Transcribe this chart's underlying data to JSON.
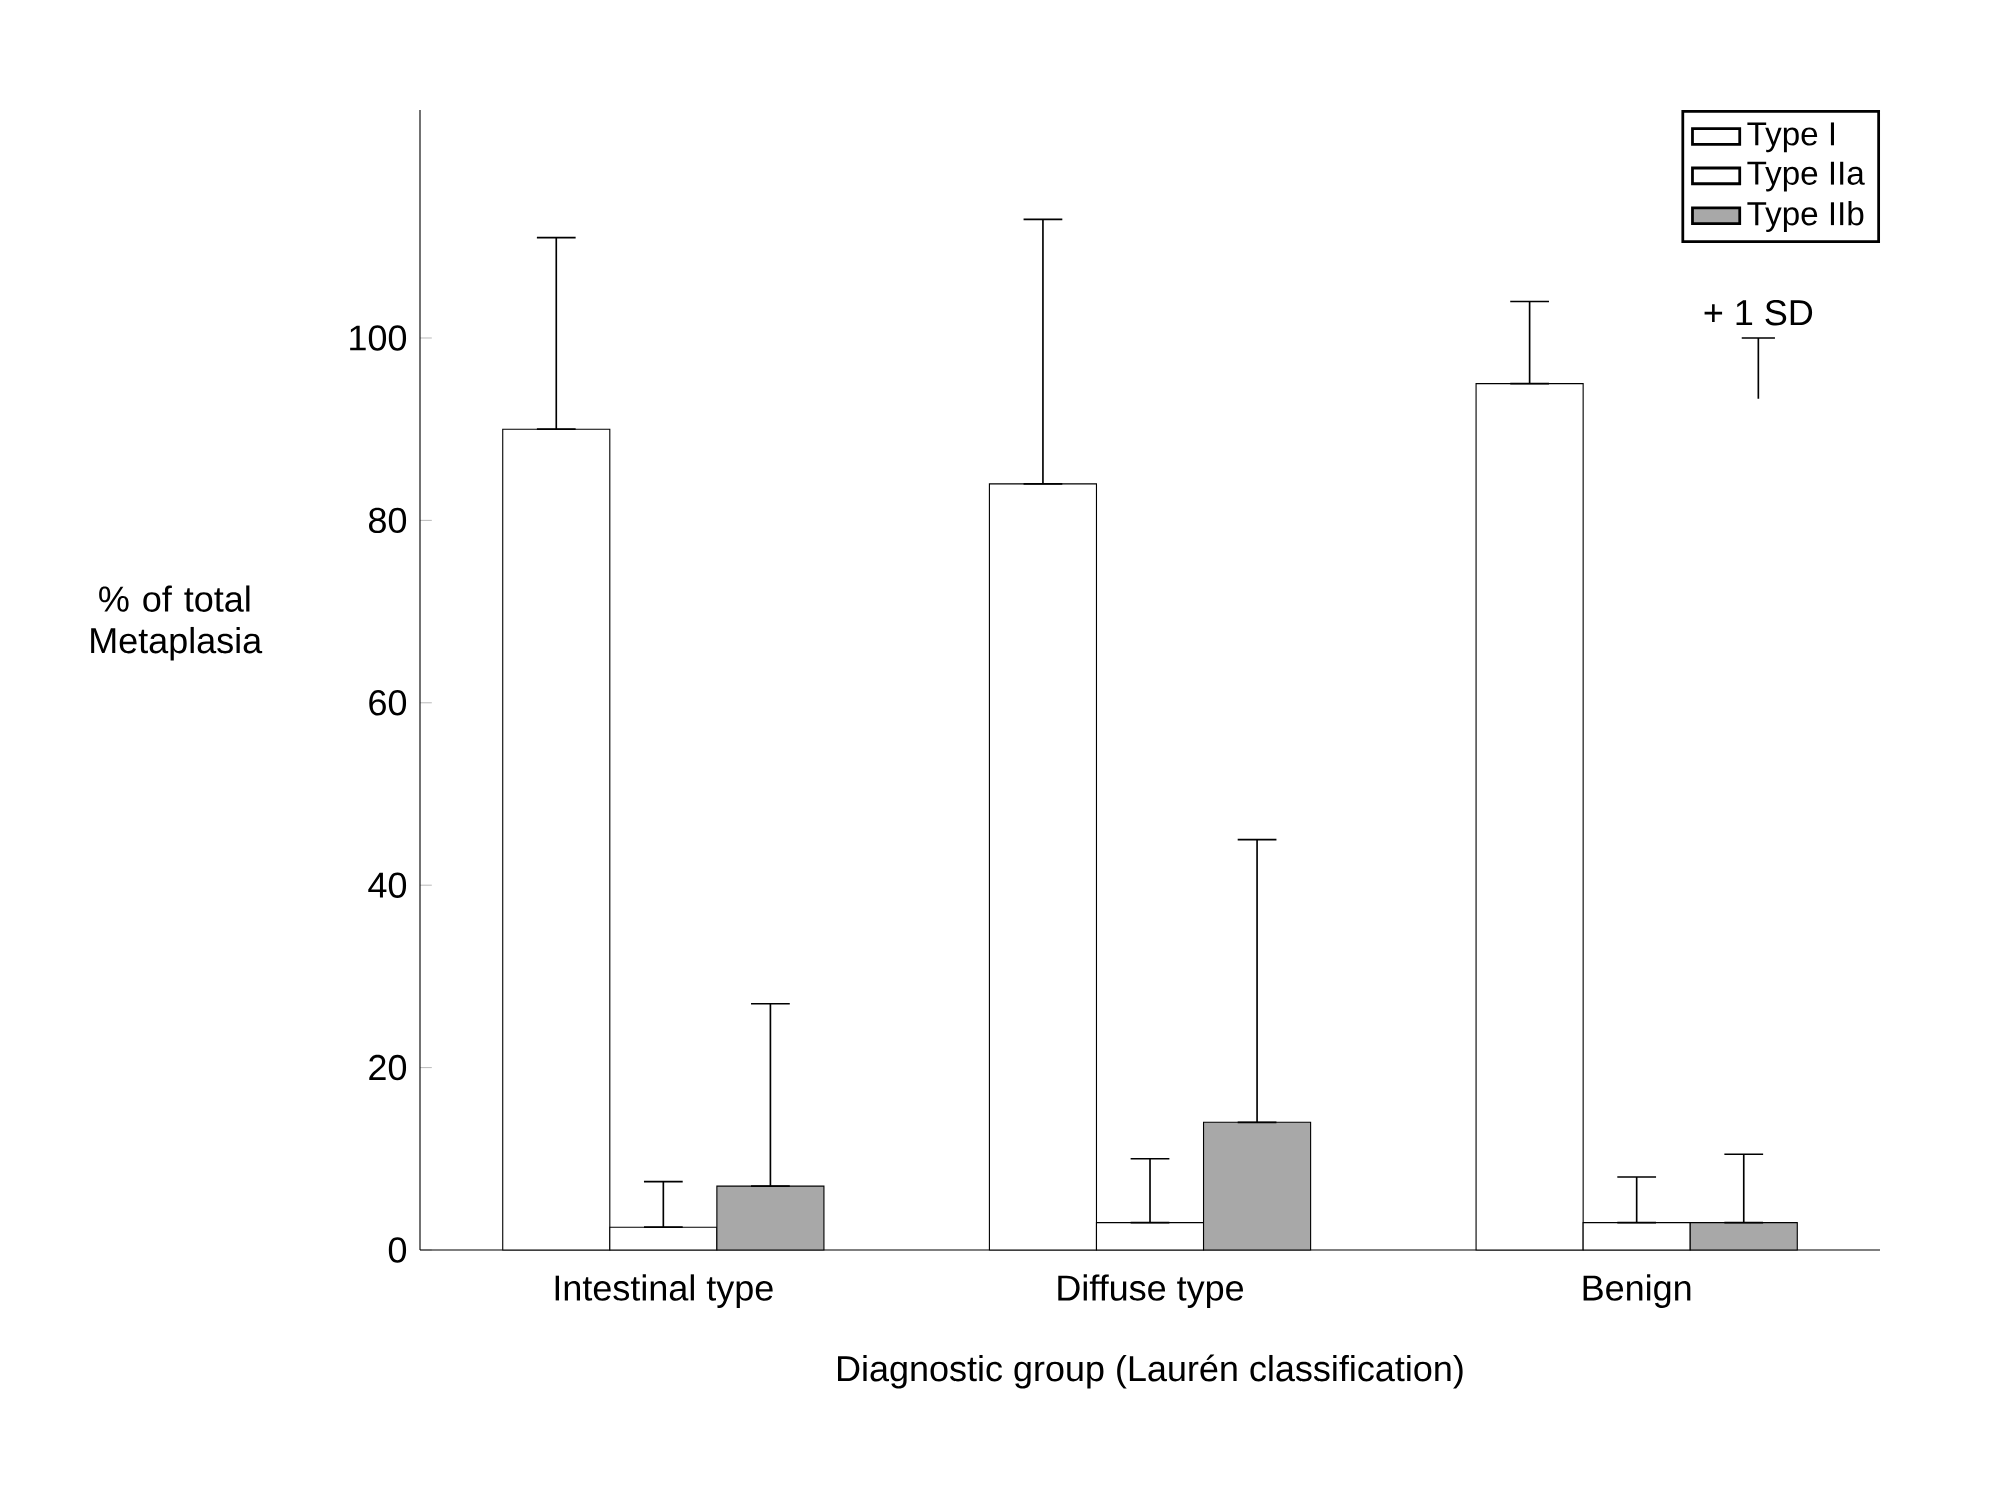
{
  "chart_data": {
    "type": "bar",
    "xlabel": "Diagnostic group (Laurén classification)",
    "ylabel": "% of total Metaplasia",
    "categories": [
      "Intestinal type",
      "Diffuse type",
      "Benign"
    ],
    "series": [
      {
        "name": "Type I",
        "color": "#ffffff",
        "values": [
          90,
          84,
          95
        ],
        "errors": [
          [
            90,
            111
          ],
          [
            84,
            113
          ],
          [
            95,
            104
          ]
        ]
      },
      {
        "name": "Type IIa",
        "color": "#ffffff",
        "values": [
          2.5,
          3,
          3
        ],
        "errors": [
          [
            2.5,
            7.5
          ],
          [
            3,
            10
          ],
          [
            3,
            8
          ]
        ]
      },
      {
        "name": "Type IIb",
        "color": "#a8a8a8",
        "values": [
          7,
          14,
          3
        ],
        "errors": [
          [
            7,
            27
          ],
          [
            14,
            45
          ],
          [
            3,
            10.5
          ]
        ]
      }
    ],
    "ylim": [
      0,
      125
    ],
    "yticks": [
      0,
      20,
      40,
      60,
      80,
      100
    ],
    "grid": false,
    "legend": "top right",
    "annotations": [
      "+ 1 SD"
    ]
  }
}
